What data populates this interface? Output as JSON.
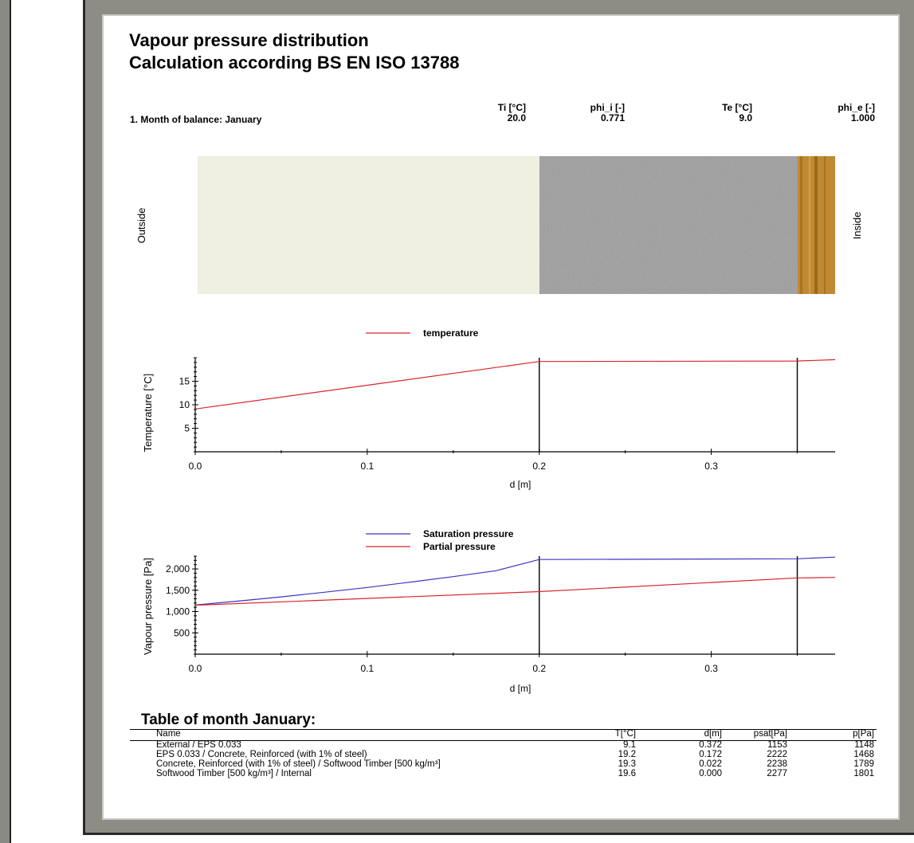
{
  "header": {
    "title_line1": "Vapour pressure distribution",
    "title_line2": "Calculation according BS EN ISO 13788",
    "month_label": "1. Month of balance: January",
    "params": [
      {
        "label": "Ti [°C]",
        "value": "20.0"
      },
      {
        "label": "phi_i [-]",
        "value": "0.771"
      },
      {
        "label": "Te [°C]",
        "value": "9.0"
      },
      {
        "label": "phi_e [-]",
        "value": "1.000"
      }
    ]
  },
  "wall": {
    "outside_label": "Outside",
    "inside_label": "Inside",
    "colors": {
      "eps": "#efefe2",
      "concrete": "#9c9c9c",
      "timber": "#c08a34"
    }
  },
  "chart_data": [
    {
      "type": "line",
      "xlabel": "d [m]",
      "ylabel": "Temperature [°C]",
      "xlim": [
        0,
        0.372
      ],
      "ylim": [
        0,
        20
      ],
      "xticks": [
        "0.0",
        "0.1",
        "0.2",
        "0.3"
      ],
      "yticks": [
        "5",
        "10",
        "15"
      ],
      "layer_boundaries": [
        0.2,
        0.35
      ],
      "series": [
        {
          "name": "temperature",
          "color": "#d9262b",
          "x": [
            0.0,
            0.2,
            0.35,
            0.372
          ],
          "y": [
            9.1,
            19.2,
            19.3,
            19.6
          ]
        }
      ]
    },
    {
      "type": "line",
      "xlabel": "d [m]",
      "ylabel": "Vapour pressure [Pa]",
      "xlim": [
        0,
        0.372
      ],
      "ylim": [
        0,
        2300
      ],
      "xticks": [
        "0.0",
        "0.1",
        "0.2",
        "0.3"
      ],
      "yticks": [
        "500",
        "1,000",
        "1,500",
        "2,000"
      ],
      "layer_boundaries": [
        0.2,
        0.35
      ],
      "series": [
        {
          "name": "Saturation pressure",
          "color": "#3a35c4",
          "x": [
            0.0,
            0.025,
            0.05,
            0.075,
            0.1,
            0.125,
            0.15,
            0.175,
            0.2,
            0.35,
            0.372
          ],
          "y": [
            1153,
            1245,
            1345,
            1452,
            1565,
            1690,
            1820,
            1960,
            2222,
            2238,
            2277
          ]
        },
        {
          "name": "Partial pressure",
          "color": "#d9262b",
          "x": [
            0.0,
            0.2,
            0.35,
            0.372
          ],
          "y": [
            1148,
            1468,
            1789,
            1801
          ]
        }
      ]
    }
  ],
  "table": {
    "title": "Table of month January:",
    "columns": [
      "Name",
      "T[°C]",
      "d[m]",
      "psat[Pa]",
      "p[Pa]"
    ],
    "rows": [
      [
        "External / EPS 0.033",
        "9.1",
        "0.372",
        "1153",
        "1148"
      ],
      [
        "EPS 0.033 / Concrete, Reinforced (with 1% of steel)",
        "19.2",
        "0.172",
        "2222",
        "1468"
      ],
      [
        "Concrete, Reinforced (with 1% of steel) / Softwood Timber [500 kg/m³]",
        "19.3",
        "0.022",
        "2238",
        "1789"
      ],
      [
        "Softwood Timber [500 kg/m³] / Internal",
        "19.6",
        "0.000",
        "2277",
        "1801"
      ]
    ]
  }
}
